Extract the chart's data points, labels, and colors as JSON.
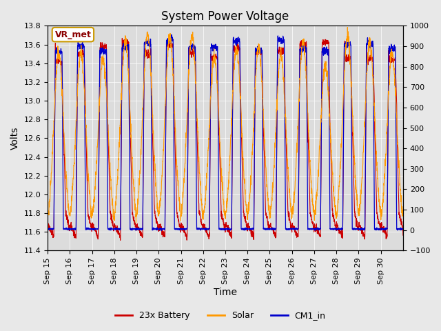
{
  "title": "System Power Voltage",
  "xlabel": "Time",
  "ylabel": "Volts",
  "ylim_left": [
    11.4,
    13.8
  ],
  "ylim_right": [
    -100,
    1000
  ],
  "yticks_left": [
    11.4,
    11.6,
    11.8,
    12.0,
    12.2,
    12.4,
    12.6,
    12.8,
    13.0,
    13.2,
    13.4,
    13.6,
    13.8
  ],
  "yticks_right": [
    -100,
    0,
    100,
    200,
    300,
    400,
    500,
    600,
    700,
    800,
    900,
    1000
  ],
  "xtick_labels": [
    "Sep 15",
    "Sep 16",
    "Sep 17",
    "Sep 18",
    "Sep 19",
    "Sep 20",
    "Sep 21",
    "Sep 22",
    "Sep 23",
    "Sep 24",
    "Sep 25",
    "Sep 26",
    "Sep 27",
    "Sep 28",
    "Sep 29",
    "Sep 30"
  ],
  "legend_labels": [
    "23x Battery",
    "Solar",
    "CM1_in"
  ],
  "legend_colors": [
    "#cc0000",
    "#ff9900",
    "#0000cc"
  ],
  "vr_met_label": "VR_met",
  "vr_met_color": "#cc9900",
  "background_color": "#e8e8e8",
  "plot_bg_color": "#dcdcdc",
  "n_days": 16,
  "battery_charge_peak": 13.65,
  "cm1_max": 13.65
}
